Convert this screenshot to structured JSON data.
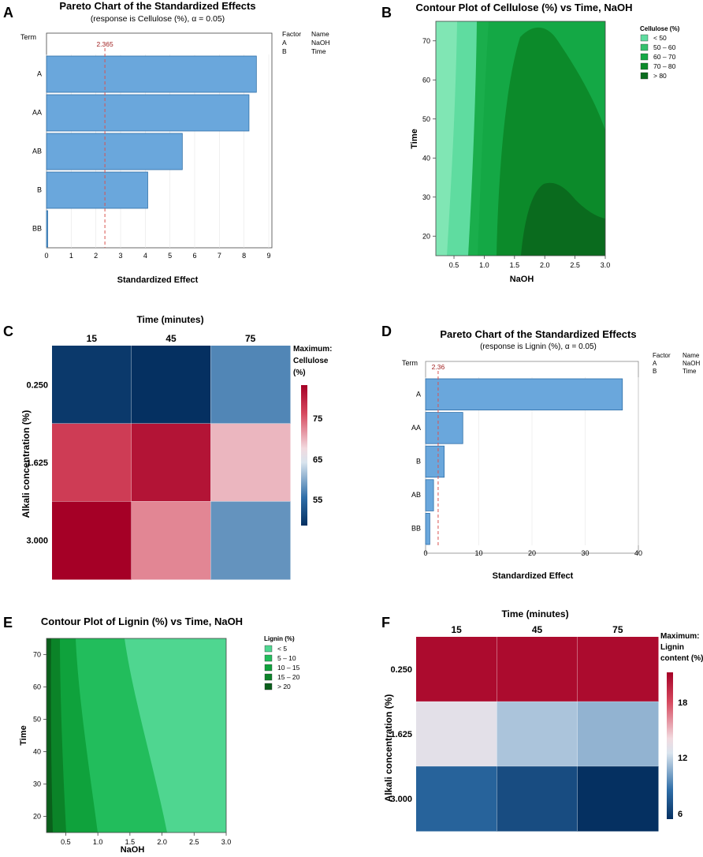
{
  "panels": [
    "A",
    "B",
    "C",
    "D",
    "E",
    "F"
  ],
  "chart_data": [
    {
      "id": "A",
      "type": "bar",
      "orientation": "horizontal",
      "title": "Pareto Chart of the Standardized Effects",
      "subtitle": "(response is Cellulose (%), α = 0.05)",
      "ylabel": "Term",
      "xlabel": "Standardized Effect",
      "categories": [
        "A",
        "AA",
        "AB",
        "B",
        "BB"
      ],
      "values": [
        8.5,
        8.2,
        5.5,
        4.1,
        0.05
      ],
      "xlim": [
        0,
        9
      ],
      "xticks": [
        "0",
        "1",
        "2",
        "3",
        "4",
        "5",
        "6",
        "7",
        "8",
        "9"
      ],
      "reference_line": 2.365,
      "reference_label": "2.365",
      "legend": {
        "header": [
          "Factor",
          "Name"
        ],
        "rows": [
          [
            "A",
            "NaOH"
          ],
          [
            "B",
            "Time"
          ]
        ]
      },
      "bar_color": "#6aa7dc"
    },
    {
      "id": "B",
      "type": "contour",
      "title": "Contour Plot of Cellulose (%) vs Time, NaOH",
      "xlabel": "NaOH",
      "ylabel": "Time",
      "xlim": [
        0.2,
        3.0
      ],
      "ylim": [
        15,
        75
      ],
      "xticks": [
        "0.5",
        "1.0",
        "1.5",
        "2.0",
        "2.5",
        "3.0"
      ],
      "yticks": [
        "20",
        "30",
        "40",
        "50",
        "60",
        "70"
      ],
      "legend_title": "Cellulose (%)",
      "levels": [
        {
          "label": "< 50",
          "color": "#5fdca0"
        },
        {
          "label": "50 – 60",
          "color": "#35c06d"
        },
        {
          "label": "60 – 70",
          "color": "#14a845"
        },
        {
          "label": "70 – 80",
          "color": "#0c8a2a"
        },
        {
          "label": "> 80",
          "color": "#0a6b1e"
        }
      ]
    },
    {
      "id": "C",
      "type": "heatmap",
      "title": "Time (minutes)",
      "xlabel": "Time (minutes)",
      "ylabel": "Alkali concentration (%)",
      "x_categories": [
        "15",
        "45",
        "75"
      ],
      "y_categories": [
        "0.250",
        "1.625",
        "3.000"
      ],
      "values": [
        [
          50,
          49,
          58
        ],
        [
          79,
          83,
          71
        ],
        [
          85,
          74,
          59
        ]
      ],
      "colorbar_title": "Maximum: Cellulose (%)",
      "colorbar_title_lines": [
        "Maximum:",
        "Cellulose",
        "(%)"
      ],
      "colorbar_ticks": [
        "75",
        "65",
        "55"
      ],
      "colorbar_range": [
        49,
        85
      ]
    },
    {
      "id": "D",
      "type": "bar",
      "orientation": "horizontal",
      "title": "Pareto Chart of the Standardized Effects",
      "subtitle": "(response is Lignin (%), α = 0.05)",
      "ylabel": "Term",
      "xlabel": "Standardized Effect",
      "categories": [
        "A",
        "AA",
        "B",
        "AB",
        "BB"
      ],
      "values": [
        37,
        7,
        3.5,
        1.5,
        0.8
      ],
      "xlim": [
        0,
        40
      ],
      "xticks": [
        "0",
        "10",
        "20",
        "30",
        "40"
      ],
      "reference_line": 2.36,
      "reference_label": "2.36",
      "legend": {
        "header": [
          "Factor",
          "Name"
        ],
        "rows": [
          [
            "A",
            "NaOH"
          ],
          [
            "B",
            "Time"
          ]
        ]
      },
      "bar_color": "#6aa7dc"
    },
    {
      "id": "E",
      "type": "contour",
      "title": "Contour Plot of Lignin (%) vs Time, NaOH",
      "xlabel": "NaOH",
      "ylabel": "Time",
      "xlim": [
        0.2,
        3.0
      ],
      "ylim": [
        15,
        75
      ],
      "xticks": [
        "0.5",
        "1.0",
        "1.5",
        "2.0",
        "2.5",
        "3.0"
      ],
      "yticks": [
        "20",
        "30",
        "40",
        "50",
        "60",
        "70"
      ],
      "legend_title": "Lignin (%)",
      "levels": [
        {
          "label": "< 5",
          "color": "#4fd690"
        },
        {
          "label": "5 – 10",
          "color": "#22bd5c"
        },
        {
          "label": "10 – 15",
          "color": "#0fa23c"
        },
        {
          "label": "15 – 20",
          "color": "#0b8328"
        },
        {
          "label": "> 20",
          "color": "#0a5f1b"
        }
      ]
    },
    {
      "id": "F",
      "type": "heatmap",
      "title": "Time (minutes)",
      "xlabel": "Time (minutes)",
      "ylabel": "Alkali concentration (%)",
      "x_categories": [
        "15",
        "45",
        "75"
      ],
      "y_categories": [
        "0.250",
        "1.625",
        "3.000"
      ],
      "values": [
        [
          20.5,
          20.5,
          20.5
        ],
        [
          12.6,
          10.8,
          10.2
        ],
        [
          7.2,
          6.0,
          4.5
        ]
      ],
      "colorbar_title": "Maximum: Lignin content (%)",
      "colorbar_title_lines": [
        "Maximum:",
        "Lignin",
        "content (%)"
      ],
      "colorbar_ticks": [
        "18",
        "12",
        "6"
      ],
      "colorbar_range": [
        4.5,
        21
      ]
    }
  ]
}
